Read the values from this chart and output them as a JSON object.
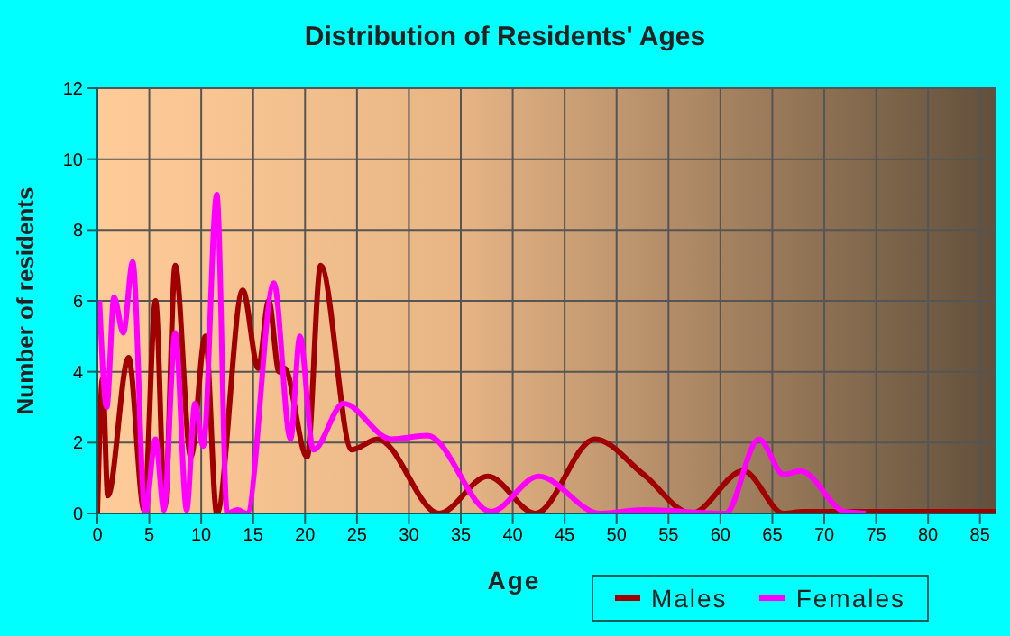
{
  "chart_data": {
    "type": "line",
    "title": "Distribution of Residents' Ages",
    "xlabel": "Age",
    "ylabel": "Number of residents",
    "series": [
      {
        "name": "Males",
        "color": "#a00000",
        "x": [
          0,
          0.5,
          1,
          3,
          4.5,
          5.6,
          6.5,
          7.5,
          9,
          10.4,
          11.5,
          14,
          15.5,
          16.5,
          17.5,
          18,
          20.2,
          21.5,
          24.5,
          27,
          32.9,
          37.6,
          42.2,
          47.9,
          52.6,
          57.2,
          62.2,
          66.1,
          68,
          86.5
        ],
        "values": [
          0,
          3.8,
          0.5,
          4.4,
          0.1,
          6,
          0.2,
          7,
          1.6,
          5,
          0,
          6.3,
          4.1,
          6,
          4,
          4.1,
          1.6,
          7,
          1.8,
          2.1,
          0,
          1.05,
          0,
          2.1,
          1.1,
          0,
          1.2,
          0,
          0.05,
          0.05
        ]
      },
      {
        "name": "Females",
        "color": "#ff00ff",
        "x": [
          0.2,
          0.9,
          1.6,
          2.5,
          3.4,
          4.6,
          5.6,
          6.4,
          7.5,
          8.6,
          9.4,
          10.2,
          11.5,
          12.5,
          13.5,
          14.4,
          17,
          18.6,
          19.5,
          20.8,
          23.7,
          28.3,
          31.8,
          37.9,
          42.5,
          48.4,
          52.6,
          60.5,
          63.7,
          66.1,
          67.7,
          72,
          74
        ],
        "values": [
          6,
          3,
          6.1,
          5.1,
          7.1,
          0,
          2.1,
          0.1,
          5.1,
          0.1,
          3.1,
          1.9,
          9,
          0,
          0.1,
          0,
          6.5,
          2.1,
          5,
          1.8,
          3.1,
          2.1,
          2.2,
          0.05,
          1.05,
          0,
          0.1,
          0,
          2.1,
          1.1,
          1.2,
          0.05,
          0
        ]
      }
    ],
    "xlim": [
      0,
      86.5
    ],
    "xticks": [
      0,
      5,
      10,
      15,
      20,
      25,
      30,
      35,
      40,
      45,
      50,
      55,
      60,
      65,
      70,
      75,
      80,
      85
    ],
    "ylim": [
      0,
      12
    ],
    "yticks": [
      0,
      2,
      4,
      6,
      8,
      10,
      12
    ],
    "grid": true,
    "legend": "bottom right",
    "marker": "none",
    "line_style": "solid"
  }
}
